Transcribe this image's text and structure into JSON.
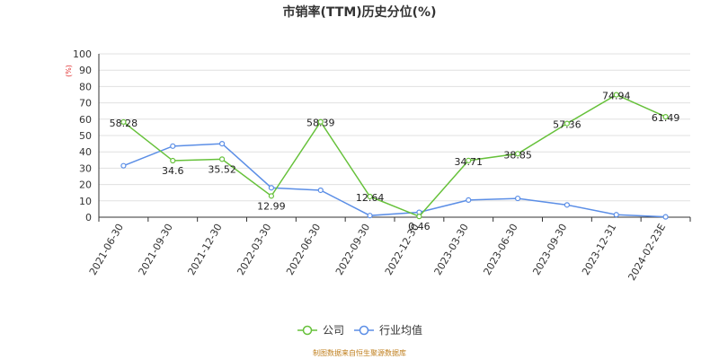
{
  "chart_data": {
    "type": "line",
    "title": "市销率(TTM)历史分位(%)",
    "unit_label": "(%)",
    "categories": [
      "2021-06-30",
      "2021-09-30",
      "2021-12-30",
      "2022-03-30",
      "2022-06-30",
      "2022-09-30",
      "2022-12-30",
      "2023-03-30",
      "2023-06-30",
      "2023-09-30",
      "2023-12-31",
      "2024-02-23E"
    ],
    "ylim": [
      0,
      100
    ],
    "yticks": [
      0,
      10,
      20,
      30,
      40,
      50,
      60,
      70,
      80,
      90,
      100
    ],
    "grid": true,
    "legend_position": "bottom-center",
    "series": [
      {
        "name": "公司",
        "color": "#66c13a",
        "values": [
          58.28,
          34.6,
          35.52,
          12.99,
          58.39,
          12.64,
          0.46,
          34.71,
          38.85,
          57.36,
          74.94,
          61.49
        ],
        "labels": [
          "58.28",
          "34.6",
          "35.52",
          "12.99",
          "58.39",
          "12.64",
          "0.46",
          "34.71",
          "38.85",
          "57.36",
          "74.94",
          "61.49"
        ]
      },
      {
        "name": "行业均值",
        "color": "#5b8ee6",
        "values": [
          31.5,
          43.5,
          45.0,
          18.0,
          16.5,
          1.0,
          3.0,
          10.5,
          11.5,
          7.5,
          1.5,
          0.2
        ]
      }
    ]
  },
  "footer": {
    "source": "制图数据来自恒生聚源数据库"
  }
}
